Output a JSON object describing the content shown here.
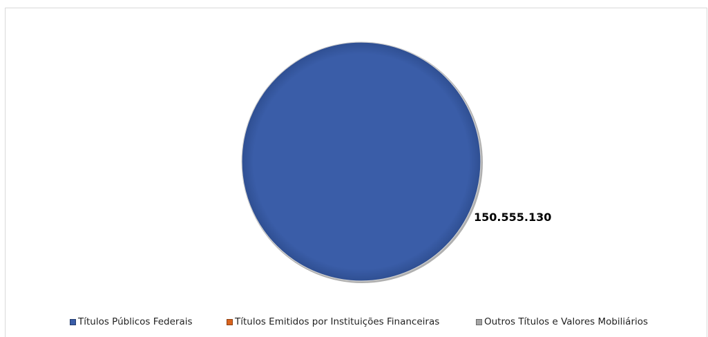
{
  "chart_data": {
    "type": "pie",
    "title": "",
    "categories": [
      "Títulos Públicos Federais",
      "Títulos Emitidos por Instituições Financeiras",
      "Outros Títulos e Valores Mobiliários"
    ],
    "values": [
      150555130,
      0,
      0
    ],
    "data_labels": [
      "150.555.130"
    ],
    "colors": [
      "#3a5da8",
      "#d9641e",
      "#a5a5a5"
    ],
    "legend_placement": "bottom"
  }
}
